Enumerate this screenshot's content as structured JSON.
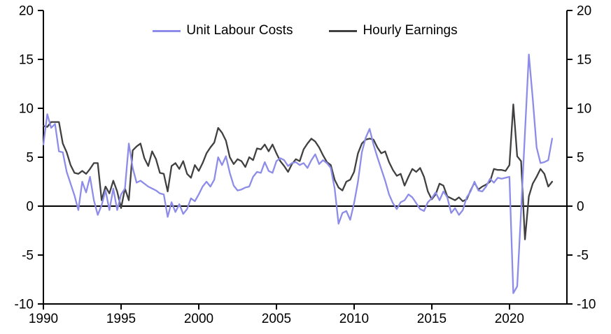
{
  "chart_data": {
    "type": "line",
    "title": "",
    "xlabel": "",
    "ylabel": "",
    "x_frequency": "quarterly",
    "x_start_year": 1990,
    "xlim": [
      1990,
      2023.7
    ],
    "ylim": [
      -10,
      20
    ],
    "y_ticks": [
      20,
      15,
      10,
      5,
      0,
      -5,
      -10
    ],
    "y_tick_labels": [
      "20",
      "15",
      "10",
      "5",
      "0",
      "-5",
      "-10"
    ],
    "x_ticks": [
      1990,
      1995,
      2000,
      2005,
      2010,
      2015,
      2020
    ],
    "x_tick_labels": [
      "1990",
      "1995",
      "2000",
      "2005",
      "2010",
      "2015",
      "2020"
    ],
    "dual_axis": true,
    "grid": false,
    "zero_line": true,
    "legend_position": "top-center",
    "axis_color": "#000000",
    "series": [
      {
        "name": "Unit Labour Costs",
        "color": "#8d8de9",
        "values": [
          6.3,
          9.4,
          8.0,
          8.4,
          5.6,
          5.5,
          3.5,
          2.3,
          1.1,
          -0.4,
          2.5,
          1.4,
          3.0,
          0.6,
          -0.9,
          0.1,
          1.6,
          -0.4,
          1.8,
          -0.4,
          1.2,
          1.8,
          6.4,
          3.9,
          2.4,
          2.6,
          2.3,
          2.0,
          1.8,
          1.6,
          1.3,
          1.2,
          -1.1,
          0.4,
          -0.6,
          0.2,
          -0.8,
          -0.3,
          0.8,
          0.5,
          1.2,
          2.0,
          2.5,
          2.0,
          2.7,
          5.0,
          4.2,
          5.1,
          3.4,
          2.1,
          1.6,
          1.7,
          1.9,
          2.0,
          3.0,
          3.5,
          3.4,
          4.5,
          3.6,
          3.4,
          4.6,
          4.9,
          4.7,
          4.1,
          4.4,
          4.5,
          4.2,
          4.4,
          3.9,
          4.7,
          5.3,
          4.3,
          4.7,
          4.4,
          3.9,
          1.8,
          -1.8,
          -0.7,
          -0.5,
          -1.4,
          0.3,
          2.5,
          5.5,
          7.0,
          7.9,
          6.3,
          5.0,
          3.8,
          2.6,
          1.2,
          0.3,
          -0.3,
          0.4,
          0.6,
          1.2,
          0.9,
          0.3,
          -0.3,
          -0.5,
          0.4,
          0.8,
          1.4,
          0.6,
          1.5,
          0.9,
          -0.7,
          -0.2,
          -0.9,
          -0.4,
          0.9,
          1.5,
          2.5,
          1.6,
          1.5,
          2.0,
          2.8,
          2.4,
          2.9,
          2.8,
          2.9,
          3.0,
          -8.9,
          -8.2,
          -0.5,
          7.5,
          15.5,
          11.0,
          6.0,
          4.4,
          4.5,
          4.7,
          6.9
        ]
      },
      {
        "name": "Hourly Earnings",
        "color": "#404040",
        "values": [
          8.2,
          8.1,
          8.6,
          8.6,
          8.6,
          6.4,
          5.5,
          4.2,
          3.4,
          3.3,
          3.6,
          3.3,
          3.8,
          4.4,
          4.4,
          0.6,
          2.0,
          1.3,
          2.6,
          1.5,
          -0.2,
          1.8,
          0.6,
          5.7,
          6.1,
          6.4,
          4.9,
          4.1,
          5.6,
          4.8,
          3.4,
          3.3,
          1.5,
          4.1,
          4.4,
          3.8,
          4.6,
          3.3,
          2.9,
          4.2,
          3.6,
          4.4,
          5.4,
          6.0,
          6.5,
          8.0,
          7.5,
          6.7,
          5.0,
          4.3,
          4.8,
          4.6,
          4.0,
          5.0,
          4.7,
          5.9,
          5.8,
          6.3,
          5.6,
          6.3,
          5.4,
          4.6,
          4.1,
          3.5,
          4.3,
          4.8,
          4.6,
          5.8,
          6.4,
          6.9,
          6.6,
          6.0,
          5.2,
          4.5,
          4.2,
          2.7,
          1.9,
          1.6,
          2.5,
          2.7,
          3.5,
          5.4,
          6.4,
          6.8,
          6.9,
          6.8,
          6.0,
          5.4,
          5.6,
          4.5,
          3.7,
          3.1,
          3.3,
          2.1,
          3.0,
          3.8,
          3.5,
          3.9,
          3.0,
          1.5,
          0.7,
          1.2,
          2.3,
          2.1,
          1.0,
          0.8,
          0.6,
          0.9,
          0.5,
          0.7,
          1.6,
          2.4,
          1.7,
          2.0,
          2.2,
          2.5,
          3.8,
          3.7,
          3.7,
          3.6,
          4.2,
          10.4,
          5.1,
          4.6,
          -3.4,
          1.0,
          2.3,
          3.0,
          3.8,
          3.3,
          2.0,
          2.5
        ]
      }
    ]
  }
}
